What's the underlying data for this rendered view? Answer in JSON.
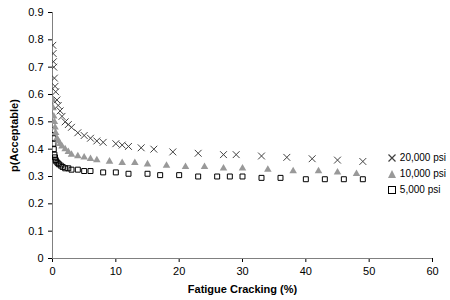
{
  "chart_data": {
    "type": "scatter",
    "x_label": "Fatigue Cracking (%)",
    "y_label": "p(Acceptable)",
    "xlim": [
      0,
      60
    ],
    "xticks": [
      0,
      10,
      20,
      30,
      40,
      50,
      60
    ],
    "ylim": [
      0,
      0.9
    ],
    "yticks": [
      0,
      0.1,
      0.2,
      0.3,
      0.4,
      0.5,
      0.6,
      0.7,
      0.8,
      0.9
    ],
    "grid": false,
    "legend": "right",
    "series": [
      {
        "name": "5,000 psi",
        "color": "#000000",
        "marker": "square",
        "x": [
          0.05,
          0.1,
          0.15,
          0.2,
          0.3,
          0.4,
          0.5,
          0.6,
          0.8,
          1.0,
          1.3,
          1.6,
          2.0,
          2.5,
          3,
          4,
          5,
          6,
          8,
          10,
          12,
          15,
          17,
          20,
          23,
          26,
          28,
          30,
          33,
          36,
          40,
          43,
          46,
          49
        ],
        "values": [
          0.47,
          0.44,
          0.42,
          0.4,
          0.38,
          0.37,
          0.36,
          0.355,
          0.35,
          0.345,
          0.34,
          0.335,
          0.33,
          0.33,
          0.325,
          0.325,
          0.32,
          0.32,
          0.315,
          0.315,
          0.31,
          0.31,
          0.305,
          0.305,
          0.3,
          0.3,
          0.3,
          0.3,
          0.295,
          0.295,
          0.29,
          0.29,
          0.29,
          0.29
        ]
      },
      {
        "name": "10,000 psi",
        "color": "#999999",
        "marker": "triangle",
        "x": [
          0.05,
          0.1,
          0.2,
          0.3,
          0.4,
          0.5,
          0.7,
          0.9,
          1.2,
          1.5,
          2,
          2.5,
          3,
          4,
          5,
          6,
          7,
          9,
          11,
          13,
          15,
          18,
          21,
          24,
          27,
          30,
          34,
          38,
          42,
          45,
          48
        ],
        "values": [
          0.58,
          0.55,
          0.52,
          0.5,
          0.48,
          0.46,
          0.44,
          0.43,
          0.42,
          0.41,
          0.4,
          0.39,
          0.38,
          0.375,
          0.37,
          0.365,
          0.36,
          0.355,
          0.35,
          0.35,
          0.345,
          0.34,
          0.335,
          0.335,
          0.33,
          0.33,
          0.325,
          0.32,
          0.32,
          0.315,
          0.31
        ]
      },
      {
        "name": "20,000 psi",
        "color": "#404040",
        "marker": "times",
        "x": [
          0.05,
          0.1,
          0.15,
          0.2,
          0.3,
          0.4,
          0.5,
          0.7,
          0.9,
          1.2,
          1.5,
          2,
          2.5,
          3,
          4,
          5,
          6,
          7,
          8,
          10,
          11,
          12,
          14,
          16,
          19,
          23,
          27,
          29,
          33,
          37,
          41,
          45,
          49
        ],
        "values": [
          0.78,
          0.75,
          0.72,
          0.7,
          0.66,
          0.63,
          0.61,
          0.58,
          0.56,
          0.54,
          0.52,
          0.5,
          0.49,
          0.48,
          0.46,
          0.45,
          0.44,
          0.43,
          0.425,
          0.42,
          0.415,
          0.41,
          0.405,
          0.4,
          0.39,
          0.385,
          0.38,
          0.38,
          0.375,
          0.37,
          0.365,
          0.36,
          0.355
        ]
      }
    ]
  }
}
